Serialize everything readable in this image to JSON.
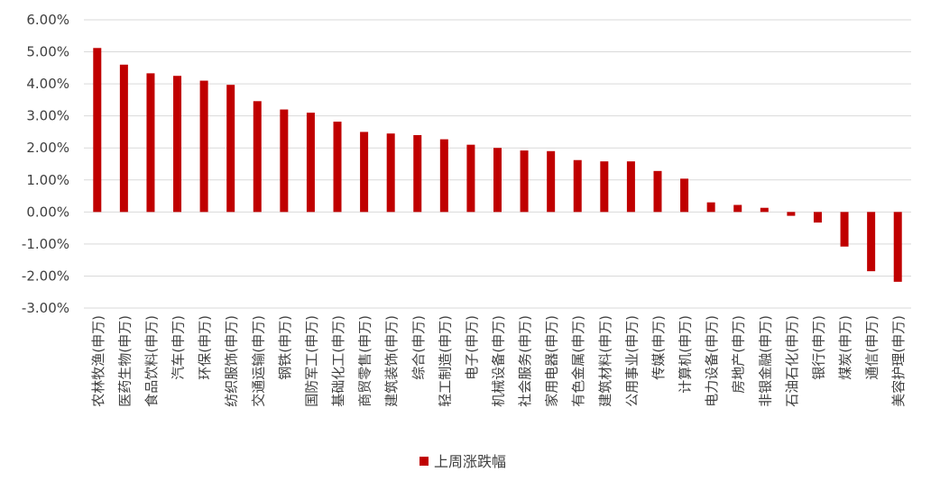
{
  "chart_data": {
    "type": "bar",
    "categories": [
      "农林牧渔(申万)",
      "医药生物(申万)",
      "食品饮料(申万)",
      "汽车(申万)",
      "环保(申万)",
      "纺织服饰(申万)",
      "交通运输(申万)",
      "钢铁(申万)",
      "国防军工(申万)",
      "基础化工(申万)",
      "商贸零售(申万)",
      "建筑装饰(申万)",
      "综合(申万)",
      "轻工制造(申万)",
      "电子(申万)",
      "机械设备(申万)",
      "社会服务(申万)",
      "家用电器(申万)",
      "有色金属(申万)",
      "建筑材料(申万)",
      "公用事业(申万)",
      "传媒(申万)",
      "计算机(申万)",
      "电力设备(申万)",
      "房地产(申万)",
      "非银金融(申万)",
      "石油石化(申万)",
      "银行(申万)",
      "煤炭(申万)",
      "通信(申万)",
      "美容护理(申万)"
    ],
    "series": [
      {
        "name": "上周涨跌幅",
        "values": [
          5.12,
          4.6,
          4.33,
          4.25,
          4.1,
          3.97,
          3.46,
          3.2,
          3.1,
          2.82,
          2.5,
          2.45,
          2.4,
          2.27,
          2.1,
          2.0,
          1.92,
          1.9,
          1.62,
          1.58,
          1.58,
          1.28,
          1.04,
          0.3,
          0.22,
          0.13,
          -0.12,
          -0.33,
          -1.08,
          -1.85,
          -2.18
        ]
      }
    ],
    "ylim": [
      -3,
      6
    ],
    "yticks": [
      "6.00%",
      "5.00%",
      "4.00%",
      "3.00%",
      "2.00%",
      "1.00%",
      "0.00%",
      "-1.00%",
      "-2.00%",
      "-3.00%"
    ],
    "ytick_values": [
      6,
      5,
      4,
      3,
      2,
      1,
      0,
      -1,
      -2,
      -3
    ],
    "grid": true,
    "legend_position": "bottom",
    "bar_color": "#c00000"
  }
}
